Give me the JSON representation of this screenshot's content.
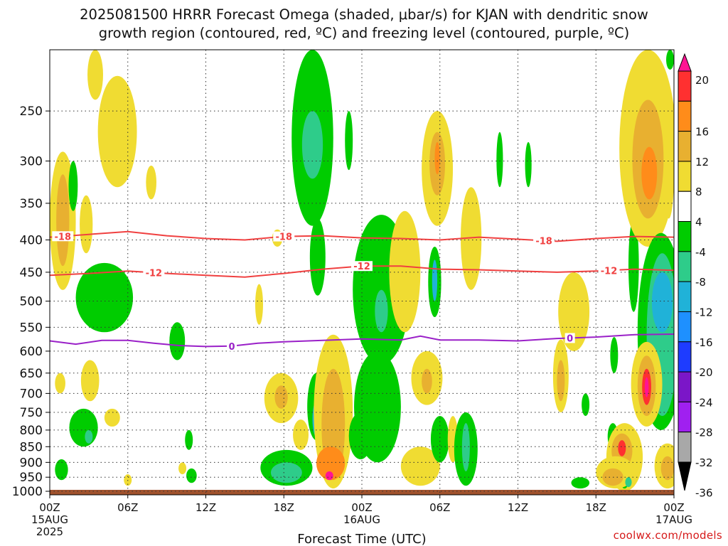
{
  "title_line1": "2025081500 HRRR Forecast Omega (shaded, μbar/s) for KJAN with dendritic snow",
  "title_line2": "growth region (contoured, red, ºC) and freezing level (contoured, purple, ºC)",
  "watermark": "coolwx.com/models",
  "chart_data": {
    "type": "heatmap",
    "xlabel": "Forecast Time (UTC)",
    "x_ticks": [
      {
        "hour": 0,
        "label": "00Z",
        "sub": [
          "15AUG",
          "2025"
        ]
      },
      {
        "hour": 6,
        "label": "06Z",
        "sub": []
      },
      {
        "hour": 12,
        "label": "12Z",
        "sub": []
      },
      {
        "hour": 18,
        "label": "18Z",
        "sub": []
      },
      {
        "hour": 24,
        "label": "00Z",
        "sub": [
          "16AUG"
        ]
      },
      {
        "hour": 30,
        "label": "06Z",
        "sub": []
      },
      {
        "hour": 36,
        "label": "12Z",
        "sub": []
      },
      {
        "hour": 42,
        "label": "18Z",
        "sub": []
      },
      {
        "hour": 48,
        "label": "00Z",
        "sub": [
          "17AUG"
        ]
      }
    ],
    "xlim": [
      0,
      48
    ],
    "y_levels": [
      250,
      300,
      350,
      400,
      450,
      500,
      550,
      600,
      650,
      700,
      750,
      800,
      850,
      900,
      950,
      1000
    ],
    "ylim": [
      200,
      1013
    ],
    "y_scale": "log-pressure",
    "grid": true,
    "ground": {
      "pressure_top": 1000,
      "color": "#a0522d"
    },
    "colorbar": {
      "labels": [
        20,
        16,
        12,
        8,
        4,
        -4,
        -8,
        -12,
        -16,
        -20,
        -24,
        -28,
        -32,
        -36
      ],
      "bins": [
        {
          "color": "#ff1493",
          "range": [
            20,
            99
          ]
        },
        {
          "color": "#ff3030",
          "range": [
            16,
            20
          ]
        },
        {
          "color": "#ff8c1a",
          "range": [
            12,
            16
          ]
        },
        {
          "color": "#e8b030",
          "range": [
            8,
            12
          ]
        },
        {
          "color": "#f0dc32",
          "range": [
            4,
            8
          ]
        },
        {
          "color": "#ffffff",
          "range": [
            -4,
            4
          ]
        },
        {
          "color": "#00cc00",
          "range": [
            -8,
            -4
          ]
        },
        {
          "color": "#2ecc8a",
          "range": [
            -12,
            -8
          ]
        },
        {
          "color": "#20b2d8",
          "range": [
            -16,
            -12
          ]
        },
        {
          "color": "#1e90ff",
          "range": [
            -20,
            -16
          ]
        },
        {
          "color": "#1e3cff",
          "range": [
            -24,
            -20
          ]
        },
        {
          "color": "#7b16c8",
          "range": [
            -28,
            -24
          ]
        },
        {
          "color": "#a020f0",
          "range": [
            -32,
            -28
          ]
        },
        {
          "color": "#a8a8a8",
          "range": [
            -36,
            -32
          ]
        },
        {
          "color": "#000000",
          "range": [
            -99,
            -36
          ]
        }
      ]
    },
    "contours": [
      {
        "label": "-18",
        "color": "#f04040",
        "label_hours": [
          1,
          18,
          38
        ],
        "points": [
          [
            0,
            396
          ],
          [
            3,
            392
          ],
          [
            6,
            388
          ],
          [
            9,
            394
          ],
          [
            12,
            398
          ],
          [
            15,
            400
          ],
          [
            18,
            395
          ],
          [
            21,
            394
          ],
          [
            24,
            397
          ],
          [
            27,
            398
          ],
          [
            30,
            400
          ],
          [
            33,
            396
          ],
          [
            36,
            399
          ],
          [
            39,
            402
          ],
          [
            42,
            398
          ],
          [
            45,
            395
          ],
          [
            48,
            396
          ]
        ]
      },
      {
        "label": "-12",
        "color": "#f04040",
        "label_hours": [
          8,
          24,
          43
        ],
        "points": [
          [
            0,
            455
          ],
          [
            3,
            452
          ],
          [
            6,
            448
          ],
          [
            9,
            452
          ],
          [
            12,
            455
          ],
          [
            15,
            458
          ],
          [
            18,
            452
          ],
          [
            21,
            445
          ],
          [
            24,
            440
          ],
          [
            27,
            440
          ],
          [
            30,
            445
          ],
          [
            33,
            446
          ],
          [
            36,
            448
          ],
          [
            39,
            450
          ],
          [
            42,
            448
          ],
          [
            45,
            445
          ],
          [
            48,
            447
          ]
        ]
      },
      {
        "label": "0",
        "color": "#9a20c8",
        "label_hours": [
          14,
          40
        ],
        "points": [
          [
            0,
            578
          ],
          [
            2,
            585
          ],
          [
            4,
            577
          ],
          [
            6,
            577
          ],
          [
            8,
            583
          ],
          [
            10,
            588
          ],
          [
            12,
            590
          ],
          [
            14,
            589
          ],
          [
            16,
            583
          ],
          [
            18,
            580
          ],
          [
            21,
            577
          ],
          [
            24,
            574
          ],
          [
            27,
            576
          ],
          [
            28.5,
            568
          ],
          [
            30,
            576
          ],
          [
            33,
            576
          ],
          [
            36,
            578
          ],
          [
            39,
            573
          ],
          [
            42,
            570
          ],
          [
            45,
            565
          ],
          [
            48,
            564
          ]
        ]
      }
    ],
    "shaded_regions": [
      {
        "bin": 4,
        "cx": 1,
        "p0": 290,
        "p1": 480,
        "w": 1.0
      },
      {
        "bin": 3,
        "cx": 1,
        "p0": 315,
        "p1": 440,
        "w": 0.5
      },
      {
        "bin": 4,
        "cx": 3.5,
        "p0": 200,
        "p1": 240,
        "w": 0.6
      },
      {
        "bin": 4,
        "cx": 5.2,
        "p0": 220,
        "p1": 330,
        "w": 1.5
      },
      {
        "bin": 4,
        "cx": 7.8,
        "p0": 305,
        "p1": 345,
        "w": 0.4
      },
      {
        "bin": 4,
        "cx": 2.8,
        "p0": 340,
        "p1": 420,
        "w": 0.5
      },
      {
        "bin": 6,
        "cx": 1.8,
        "p0": 300,
        "p1": 360,
        "w": 0.35
      },
      {
        "bin": 6,
        "cx": 4.2,
        "p0": 435,
        "p1": 560,
        "w": 2.2
      },
      {
        "bin": 6,
        "cx": 9.8,
        "p0": 540,
        "p1": 620,
        "w": 0.6
      },
      {
        "bin": 4,
        "cx": 0.8,
        "p0": 650,
        "p1": 700,
        "w": 0.4
      },
      {
        "bin": 4,
        "cx": 3.1,
        "p0": 620,
        "p1": 720,
        "w": 0.7
      },
      {
        "bin": 4,
        "cx": 4.8,
        "p0": 740,
        "p1": 790,
        "w": 0.6
      },
      {
        "bin": 6,
        "cx": 2.6,
        "p0": 740,
        "p1": 850,
        "w": 1.1
      },
      {
        "bin": 7,
        "cx": 3.0,
        "p0": 800,
        "p1": 840,
        "w": 0.3
      },
      {
        "bin": 6,
        "cx": 0.9,
        "p0": 890,
        "p1": 960,
        "w": 0.5
      },
      {
        "bin": 4,
        "cx": 6.0,
        "p0": 940,
        "p1": 980,
        "w": 0.3
      },
      {
        "bin": 6,
        "cx": 10.7,
        "p0": 800,
        "p1": 860,
        "w": 0.3
      },
      {
        "bin": 6,
        "cx": 10.9,
        "p0": 920,
        "p1": 970,
        "w": 0.4
      },
      {
        "bin": 4,
        "cx": 10.2,
        "p0": 900,
        "p1": 940,
        "w": 0.3
      },
      {
        "bin": 4,
        "cx": 16.1,
        "p0": 470,
        "p1": 545,
        "w": 0.3
      },
      {
        "bin": 4,
        "cx": 17.5,
        "p0": 385,
        "p1": 410,
        "w": 0.4
      },
      {
        "bin": 4,
        "cx": 17.8,
        "p0": 650,
        "p1": 780,
        "w": 1.3
      },
      {
        "bin": 3,
        "cx": 17.8,
        "p0": 680,
        "p1": 740,
        "w": 0.5
      },
      {
        "bin": 6,
        "cx": 18.2,
        "p0": 860,
        "p1": 980,
        "w": 2.0
      },
      {
        "bin": 7,
        "cx": 18.2,
        "p0": 900,
        "p1": 970,
        "w": 1.2
      },
      {
        "bin": 4,
        "cx": 19.3,
        "p0": 770,
        "p1": 860,
        "w": 0.6
      },
      {
        "bin": 6,
        "cx": 20.2,
        "p0": 200,
        "p1": 380,
        "w": 1.6
      },
      {
        "bin": 6,
        "cx": 20.6,
        "p0": 370,
        "p1": 490,
        "w": 0.6
      },
      {
        "bin": 7,
        "cx": 20.2,
        "p0": 250,
        "p1": 320,
        "w": 0.8
      },
      {
        "bin": 6,
        "cx": 20.5,
        "p0": 650,
        "p1": 830,
        "w": 0.7
      },
      {
        "bin": 8,
        "cx": 20.5,
        "p0": 720,
        "p1": 820,
        "w": 0.3
      },
      {
        "bin": 4,
        "cx": 21.8,
        "p0": 565,
        "p1": 990,
        "w": 1.5
      },
      {
        "bin": 3,
        "cx": 21.8,
        "p0": 640,
        "p1": 960,
        "w": 0.9
      },
      {
        "bin": 2,
        "cx": 21.6,
        "p0": 850,
        "p1": 960,
        "w": 1.1
      },
      {
        "bin": 0,
        "cx": 21.5,
        "p0": 930,
        "p1": 960,
        "w": 0.3
      },
      {
        "bin": 6,
        "cx": 23.0,
        "p0": 250,
        "p1": 310,
        "w": 0.3
      },
      {
        "bin": 6,
        "cx": 25.5,
        "p0": 365,
        "p1": 630,
        "w": 2.2
      },
      {
        "bin": 6,
        "cx": 25.2,
        "p0": 600,
        "p1": 900,
        "w": 1.8
      },
      {
        "bin": 7,
        "cx": 25.5,
        "p0": 480,
        "p1": 560,
        "w": 0.5
      },
      {
        "bin": 6,
        "cx": 23.9,
        "p0": 750,
        "p1": 890,
        "w": 0.9
      },
      {
        "bin": 4,
        "cx": 27.3,
        "p0": 360,
        "p1": 560,
        "w": 1.2
      },
      {
        "bin": 4,
        "cx": 29.8,
        "p0": 250,
        "p1": 380,
        "w": 1.2
      },
      {
        "bin": 3,
        "cx": 29.8,
        "p0": 270,
        "p1": 340,
        "w": 0.6
      },
      {
        "bin": 2,
        "cx": 29.8,
        "p0": 280,
        "p1": 315,
        "w": 0.2
      },
      {
        "bin": 6,
        "cx": 29.6,
        "p0": 410,
        "p1": 530,
        "w": 0.5
      },
      {
        "bin": 8,
        "cx": 29.6,
        "p0": 430,
        "p1": 500,
        "w": 0.2
      },
      {
        "bin": 4,
        "cx": 29.0,
        "p0": 600,
        "p1": 730,
        "w": 1.2
      },
      {
        "bin": 3,
        "cx": 29.0,
        "p0": 640,
        "p1": 700,
        "w": 0.4
      },
      {
        "bin": 4,
        "cx": 28.5,
        "p0": 850,
        "p1": 980,
        "w": 1.5
      },
      {
        "bin": 6,
        "cx": 30.0,
        "p0": 760,
        "p1": 900,
        "w": 0.7
      },
      {
        "bin": 4,
        "cx": 32.4,
        "p0": 330,
        "p1": 480,
        "w": 0.8
      },
      {
        "bin": 4,
        "cx": 31.0,
        "p0": 760,
        "p1": 900,
        "w": 0.4
      },
      {
        "bin": 6,
        "cx": 32.0,
        "p0": 750,
        "p1": 980,
        "w": 0.9
      },
      {
        "bin": 7,
        "cx": 32.0,
        "p0": 780,
        "p1": 930,
        "w": 0.3
      },
      {
        "bin": 6,
        "cx": 34.6,
        "p0": 270,
        "p1": 330,
        "w": 0.25
      },
      {
        "bin": 6,
        "cx": 36.8,
        "p0": 280,
        "p1": 330,
        "w": 0.25
      },
      {
        "bin": 4,
        "cx": 39.3,
        "p0": 575,
        "p1": 750,
        "w": 0.6
      },
      {
        "bin": 3,
        "cx": 39.3,
        "p0": 620,
        "p1": 720,
        "w": 0.3
      },
      {
        "bin": 4,
        "cx": 40.3,
        "p0": 450,
        "p1": 600,
        "w": 1.2
      },
      {
        "bin": 6,
        "cx": 40.8,
        "p0": 950,
        "p1": 990,
        "w": 0.7
      },
      {
        "bin": 6,
        "cx": 41.2,
        "p0": 700,
        "p1": 760,
        "w": 0.3
      },
      {
        "bin": 6,
        "cx": 43.4,
        "p0": 570,
        "p1": 650,
        "w": 0.3
      },
      {
        "bin": 6,
        "cx": 43.3,
        "p0": 780,
        "p1": 860,
        "w": 0.4
      },
      {
        "bin": 4,
        "cx": 44.2,
        "p0": 780,
        "p1": 1000,
        "w": 1.4
      },
      {
        "bin": 3,
        "cx": 44.0,
        "p0": 810,
        "p1": 920,
        "w": 0.8
      },
      {
        "bin": 1,
        "cx": 44.0,
        "p0": 830,
        "p1": 880,
        "w": 0.3
      },
      {
        "bin": 6,
        "cx": 44.2,
        "p0": 940,
        "p1": 990,
        "w": 0.3
      },
      {
        "bin": 4,
        "cx": 43.5,
        "p0": 880,
        "p1": 990,
        "w": 1.5
      },
      {
        "bin": 3,
        "cx": 43.3,
        "p0": 920,
        "p1": 980,
        "w": 0.8
      },
      {
        "bin": 6,
        "cx": 44.9,
        "p0": 370,
        "p1": 520,
        "w": 0.4
      },
      {
        "bin": 4,
        "cx": 46.0,
        "p0": 200,
        "p1": 410,
        "w": 2.2
      },
      {
        "bin": 3,
        "cx": 46.0,
        "p0": 240,
        "p1": 370,
        "w": 1.2
      },
      {
        "bin": 2,
        "cx": 46.1,
        "p0": 285,
        "p1": 345,
        "w": 0.6
      },
      {
        "bin": 4,
        "cx": 47.6,
        "p0": 270,
        "p1": 370,
        "w": 0.4
      },
      {
        "bin": 6,
        "cx": 47.0,
        "p0": 390,
        "p1": 800,
        "w": 1.8
      },
      {
        "bin": 7,
        "cx": 47.1,
        "p0": 420,
        "p1": 760,
        "w": 1.2
      },
      {
        "bin": 8,
        "cx": 47.1,
        "p0": 450,
        "p1": 560,
        "w": 0.8
      },
      {
        "bin": 4,
        "cx": 45.9,
        "p0": 580,
        "p1": 790,
        "w": 1.2
      },
      {
        "bin": 3,
        "cx": 45.9,
        "p0": 610,
        "p1": 760,
        "w": 0.7
      },
      {
        "bin": 1,
        "cx": 45.9,
        "p0": 640,
        "p1": 730,
        "w": 0.35
      },
      {
        "bin": 0,
        "cx": 45.9,
        "p0": 660,
        "p1": 710,
        "w": 0.15
      },
      {
        "bin": 4,
        "cx": 47.5,
        "p0": 840,
        "p1": 990,
        "w": 1.0
      },
      {
        "bin": 3,
        "cx": 47.5,
        "p0": 880,
        "p1": 960,
        "w": 0.5
      },
      {
        "bin": 7,
        "cx": 44.5,
        "p0": 950,
        "p1": 985,
        "w": 0.25
      },
      {
        "bin": 6,
        "cx": 47.7,
        "p0": 200,
        "p1": 215,
        "w": 0.3
      }
    ]
  }
}
